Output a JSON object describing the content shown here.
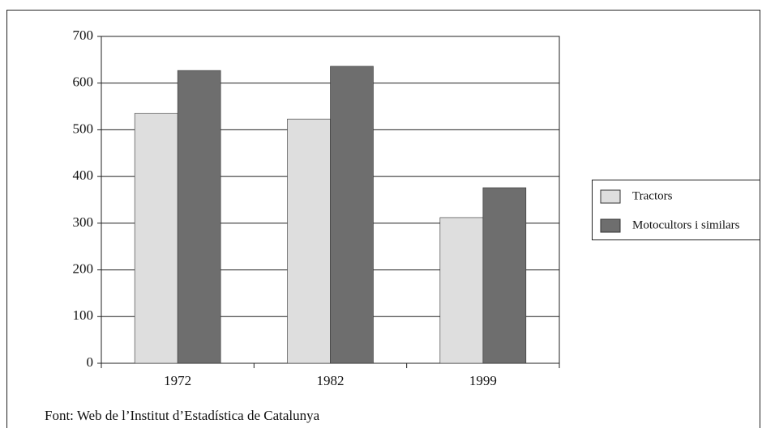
{
  "chart_data": {
    "type": "bar",
    "categories": [
      "1972",
      "1982",
      "1999"
    ],
    "series": [
      {
        "name": "Tractors",
        "color": "#dedede",
        "values": [
          535,
          523,
          312
        ]
      },
      {
        "name": "Motocultors i similars",
        "color": "#6e6e6e",
        "values": [
          627,
          636,
          376
        ]
      }
    ],
    "ylim": [
      0,
      700
    ],
    "yticks": [
      0,
      100,
      200,
      300,
      400,
      500,
      600,
      700
    ],
    "grid": true,
    "legend": "right",
    "source": "Font: Web de l’Institut d’Estadística de Catalunya"
  }
}
